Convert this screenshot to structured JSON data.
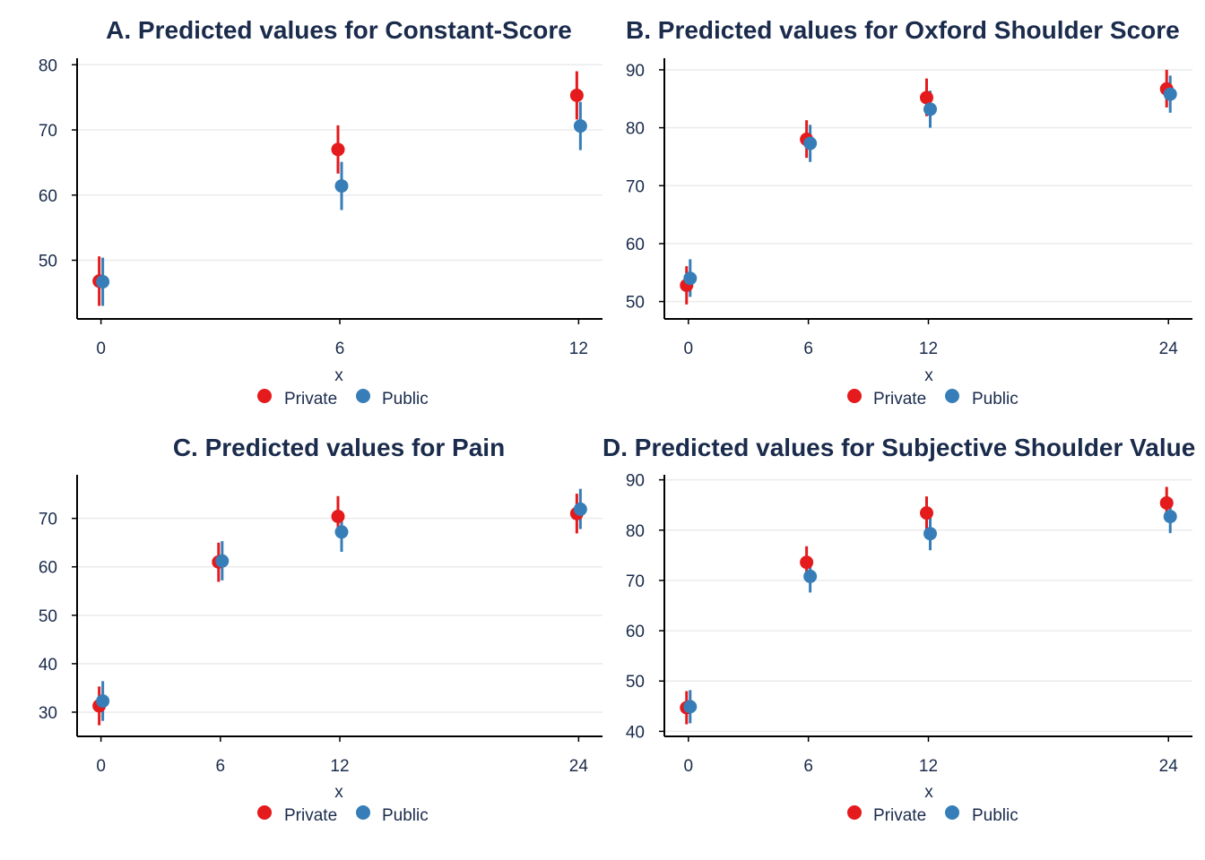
{
  "chart_data": [
    {
      "type": "scatter",
      "title": "A. Predicted values for Constant-Score",
      "xlabel": "x",
      "ylabel": "",
      "x": [
        0,
        6,
        12
      ],
      "xticks": [
        0,
        6,
        12
      ],
      "xlim": [
        -0.6,
        12.6
      ],
      "yticks": [
        50,
        60,
        70,
        80
      ],
      "ylim": [
        41,
        81
      ],
      "legend_position": "bottom",
      "series": [
        {
          "name": "Private",
          "color": "#e41a1c",
          "values": [
            46.8,
            67.0,
            75.3
          ],
          "lower": [
            43.0,
            63.3,
            71.6
          ],
          "upper": [
            50.6,
            70.7,
            79.0
          ]
        },
        {
          "name": "Public",
          "color": "#377eb8",
          "values": [
            46.7,
            61.4,
            70.6
          ],
          "lower": [
            43.0,
            57.7,
            66.9
          ],
          "upper": [
            50.4,
            65.1,
            74.3
          ]
        }
      ]
    },
    {
      "type": "scatter",
      "title": "B. Predicted values for Oxford Shoulder Score",
      "xlabel": "x",
      "ylabel": "",
      "x": [
        0,
        6,
        12,
        24
      ],
      "xticks": [
        0,
        6,
        12,
        24
      ],
      "xlim": [
        -1.2,
        25.2
      ],
      "yticks": [
        50,
        60,
        70,
        80,
        90
      ],
      "ylim": [
        47,
        92
      ],
      "legend_position": "bottom",
      "series": [
        {
          "name": "Private",
          "color": "#e41a1c",
          "values": [
            52.8,
            78.0,
            85.2,
            86.7
          ],
          "lower": [
            49.5,
            74.8,
            82.0,
            83.5
          ],
          "upper": [
            56.1,
            81.3,
            88.5,
            90.0
          ]
        },
        {
          "name": "Public",
          "color": "#377eb8",
          "values": [
            54.0,
            77.3,
            83.2,
            85.8
          ],
          "lower": [
            50.8,
            74.1,
            80.0,
            82.6
          ],
          "upper": [
            57.3,
            80.5,
            86.4,
            89.0
          ]
        }
      ]
    },
    {
      "type": "scatter",
      "title": "C. Predicted values for Pain",
      "xlabel": "x",
      "ylabel": "",
      "x": [
        0,
        6,
        12,
        24
      ],
      "xticks": [
        0,
        6,
        12,
        24
      ],
      "xlim": [
        -1.2,
        25.2
      ],
      "yticks": [
        30,
        40,
        50,
        60,
        70
      ],
      "ylim": [
        25,
        79
      ],
      "legend_position": "bottom",
      "series": [
        {
          "name": "Private",
          "color": "#e41a1c",
          "values": [
            31.3,
            61.0,
            70.4,
            71.0
          ],
          "lower": [
            27.3,
            56.9,
            66.3,
            66.9
          ],
          "upper": [
            35.3,
            65.0,
            74.6,
            75.1
          ]
        },
        {
          "name": "Public",
          "color": "#377eb8",
          "values": [
            32.3,
            61.2,
            67.2,
            71.9
          ],
          "lower": [
            28.2,
            57.2,
            63.1,
            67.8
          ],
          "upper": [
            36.4,
            65.3,
            71.3,
            76.1
          ]
        }
      ]
    },
    {
      "type": "scatter",
      "title": "D. Predicted values for Subjective Shoulder Value",
      "xlabel": "x",
      "ylabel": "",
      "x": [
        0,
        6,
        12,
        24
      ],
      "xticks": [
        0,
        6,
        12,
        24
      ],
      "xlim": [
        -1.2,
        25.2
      ],
      "yticks": [
        40,
        50,
        60,
        70,
        80,
        90
      ],
      "ylim": [
        39,
        91
      ],
      "legend_position": "bottom",
      "series": [
        {
          "name": "Private",
          "color": "#e41a1c",
          "values": [
            44.7,
            73.6,
            83.4,
            85.4
          ],
          "lower": [
            41.4,
            70.4,
            80.1,
            82.1
          ],
          "upper": [
            48.0,
            76.8,
            86.7,
            88.6
          ]
        },
        {
          "name": "Public",
          "color": "#377eb8",
          "values": [
            44.9,
            70.8,
            79.3,
            82.7
          ],
          "lower": [
            41.6,
            67.6,
            76.0,
            79.4
          ],
          "upper": [
            48.2,
            74.1,
            82.6,
            86.0
          ]
        }
      ]
    }
  ]
}
